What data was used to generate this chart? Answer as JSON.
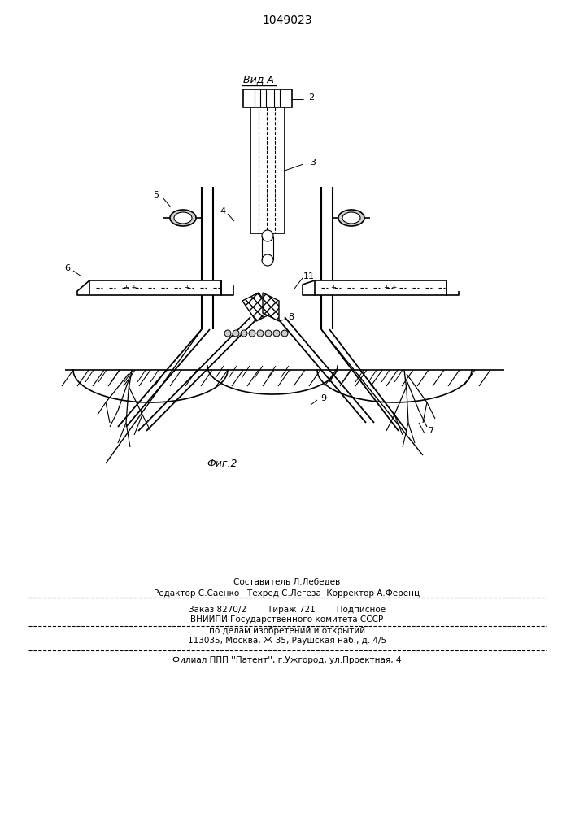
{
  "patent_number": "1049023",
  "background_color": "#ffffff",
  "line_color": "#000000",
  "title_fontsize": 10,
  "footer_fontsize": 7.5,
  "view_label": "Вид А",
  "fig_label": "Фиг.2",
  "line1_footer": "Составитель Л.Лебедев",
  "line2_footer": "Редактор С.Саенко   Техред С.Легеза  Корректор А.Ференц",
  "line3_footer": "Заказ 8270/2        Тираж 721        Подписное",
  "line4_footer": "ВНИИПИ Государственного комитета СССР",
  "line5_footer": "по делам изобретений и открытий",
  "line6_footer": "113035, Москва, Ж-35, Раушская наб., д. 4/5",
  "line7_footer": "Филиал ППП ''Патент'', г.Ужгород, ул.Проектная, 4"
}
